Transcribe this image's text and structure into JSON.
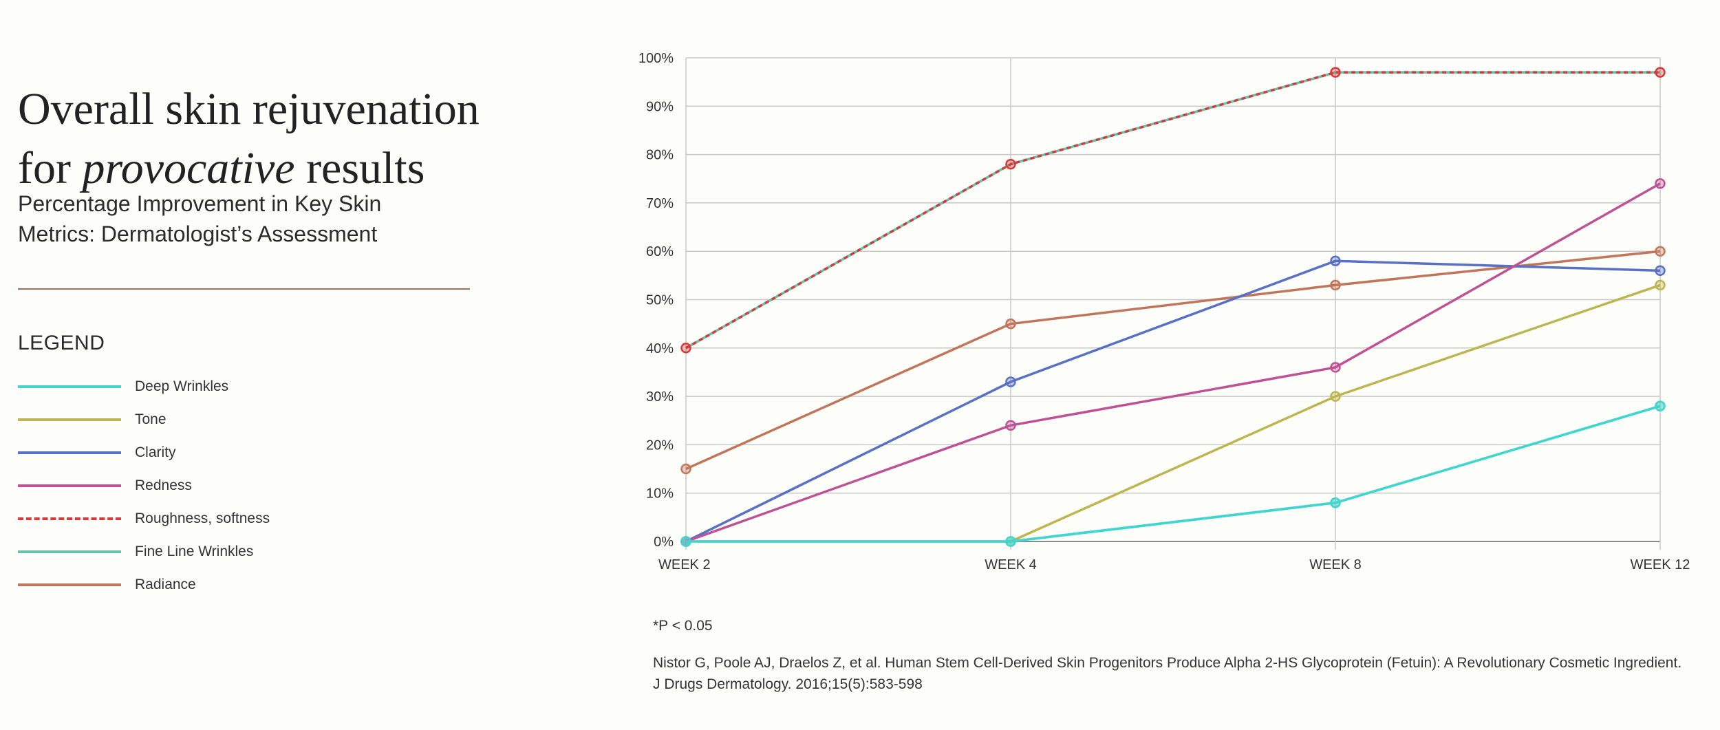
{
  "header": {
    "title_line1": "Overall skin rejuvenation",
    "title_line2_prefix": "for ",
    "title_line2_emphasis": "provocative",
    "title_line2_suffix": " results"
  },
  "subtitle": "Percentage Improvement in Key Skin Metrics: Dermatologist’s Assessment",
  "legend": {
    "title": "LEGEND",
    "items": [
      {
        "label": "Deep Wrinkles",
        "color": "#3fd6cf",
        "style": "solid"
      },
      {
        "label": "Tone",
        "color": "#bdb54f",
        "style": "solid"
      },
      {
        "label": "Clarity",
        "color": "#5871c4",
        "style": "solid"
      },
      {
        "label": "Redness",
        "color": "#bd5295",
        "style": "solid"
      },
      {
        "label": "Roughness, softness",
        "color": "#d43a3a",
        "style": "dashed"
      },
      {
        "label": "Fine Line Wrinkles",
        "color": "#66c2ad",
        "style": "solid"
      },
      {
        "label": "Radiance",
        "color": "#c0765a",
        "style": "solid"
      }
    ]
  },
  "chart_data": {
    "type": "line",
    "title": "",
    "xlabel": "",
    "ylabel": "",
    "categories": [
      "WEEK 2",
      "WEEK 4",
      "WEEK 8",
      "WEEK 12"
    ],
    "ylim": [
      0,
      100
    ],
    "yticks": [
      0,
      10,
      20,
      30,
      40,
      50,
      60,
      70,
      80,
      90,
      100
    ],
    "ytick_labels": [
      "0%",
      "10%",
      "20%",
      "30%",
      "40%",
      "50%",
      "60%",
      "70%",
      "80%",
      "90%",
      "100%"
    ],
    "grid": true,
    "series": [
      {
        "name": "Radiance",
        "color": "#c0765a",
        "style": "solid",
        "values": [
          15,
          45,
          53,
          60
        ]
      },
      {
        "name": "Clarity",
        "color": "#5871c4",
        "style": "solid",
        "values": [
          0,
          33,
          58,
          56
        ]
      },
      {
        "name": "Redness",
        "color": "#bd5295",
        "style": "solid",
        "values": [
          0,
          24,
          36,
          74
        ]
      },
      {
        "name": "Tone",
        "color": "#bdb54f",
        "style": "solid",
        "values": [
          null,
          0,
          30,
          53
        ]
      },
      {
        "name": "Fine Line Wrinkles",
        "color": "#66c2ad",
        "style": "solid",
        "values": [
          0,
          0,
          8,
          28
        ]
      },
      {
        "name": "Deep Wrinkles",
        "color": "#3fd6cf",
        "style": "solid",
        "values": [
          0,
          0,
          8,
          28
        ]
      },
      {
        "name": "Roughness, softness",
        "color": "#d43a3a",
        "style": "dashed",
        "values": [
          40,
          78,
          97,
          97
        ]
      }
    ]
  },
  "footnote": "*P < 0.05",
  "citation": "Nistor G, Poole AJ, Draelos Z, et al. Human Stem Cell-Derived Skin Progenitors Produce Alpha 2-HS Glycoprotein (Fetuin): A Revolutionary Cosmetic Ingredient. J Drugs Dermatology. 2016;15(5):583-598"
}
